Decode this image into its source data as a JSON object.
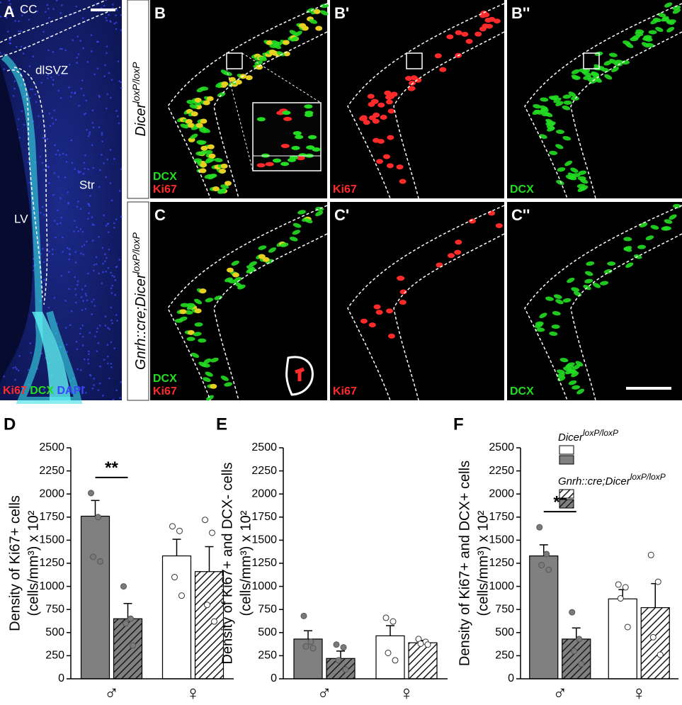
{
  "figure": {
    "panels": [
      {
        "label": "A",
        "texts": [
          "CC",
          "dlSVZ",
          "Str",
          "LV"
        ],
        "stains": [
          {
            "text": "Ki67",
            "color": "#ff2a2a"
          },
          {
            "text": "DCX",
            "color": "#22dd22"
          },
          {
            "text": "DAPI",
            "color": "#3a46ff"
          }
        ]
      },
      {
        "label": "B",
        "stains": [
          {
            "text": "DCX",
            "color": "#22dd22"
          },
          {
            "text": "Ki67",
            "color": "#ff2a2a"
          }
        ]
      },
      {
        "label": "B'",
        "stains": [
          {
            "text": "Ki67",
            "color": "#ff2a2a"
          }
        ]
      },
      {
        "label": "B''",
        "stains": [
          {
            "text": "DCX",
            "color": "#22dd22"
          }
        ]
      },
      {
        "label": "C",
        "stains": [
          {
            "text": "DCX",
            "color": "#22dd22"
          },
          {
            "text": "Ki67",
            "color": "#ff2a2a"
          }
        ]
      },
      {
        "label": "C'",
        "stains": [
          {
            "text": "Ki67",
            "color": "#ff2a2a"
          }
        ]
      },
      {
        "label": "C''",
        "stains": [
          {
            "text": "DCX",
            "color": "#22dd22"
          }
        ]
      }
    ],
    "rows": [
      {
        "text": "Dicer",
        "sup": "loxP/loxP"
      },
      {
        "text": "Gnrh::cre;Dicer",
        "sup": "loxP/loxP"
      }
    ]
  },
  "chart_data": [
    {
      "type": "bar",
      "panel": "D",
      "ylabel": [
        "Density of Ki67+ cells",
        "(cells/mm³) x 10²"
      ],
      "categories": [
        "♂",
        "♀"
      ],
      "category_colors": [
        "#808080",
        "#ffffff"
      ],
      "series": [
        {
          "values": [
            1760,
            1330
          ],
          "errors": [
            170,
            180
          ],
          "points": [
            [
              2010,
              1750,
              1320,
              1270
            ],
            [
              1650,
              1600,
              1100,
              900
            ]
          ]
        },
        {
          "hatch": true,
          "values": [
            650,
            1160
          ],
          "errors": [
            165,
            270
          ],
          "points": [
            [
              1000,
              650,
              600,
              360
            ],
            [
              1720,
              1580,
              800,
              620
            ]
          ]
        }
      ],
      "ylim": [
        0,
        2500
      ],
      "yticks": [
        0,
        250,
        500,
        750,
        1000,
        1250,
        1500,
        1750,
        2000,
        2250,
        2500
      ],
      "annotations": [
        {
          "text": "**"
        }
      ]
    },
    {
      "type": "bar",
      "panel": "E",
      "ylabel": [
        "Density of Ki67+ and DCX- cells",
        "(cells/mm³) x 10²"
      ],
      "categories": [
        "♂",
        "♀"
      ],
      "category_colors": [
        "#808080",
        "#ffffff"
      ],
      "series": [
        {
          "values": [
            430,
            465
          ],
          "errors": [
            90,
            110
          ],
          "points": [
            [
              680,
              400,
              350,
              330
            ],
            [
              660,
              620,
              280,
              200
            ]
          ]
        },
        {
          "hatch": true,
          "values": [
            220,
            390
          ],
          "errors": [
            80,
            25
          ],
          "points": [
            [
              370,
              340,
              200,
              100
            ],
            [
              430,
              400,
              380,
              370
            ]
          ]
        }
      ],
      "ylim": [
        0,
        2500
      ],
      "yticks": [
        0,
        250,
        500,
        750,
        1000,
        1250,
        1500,
        1750,
        2000,
        2250,
        2500
      ]
    },
    {
      "type": "bar",
      "panel": "F",
      "ylabel": [
        "Density of Ki67+ and DCX+ cells",
        "(cells/mm³) x 10²"
      ],
      "categories": [
        "♂",
        "♀"
      ],
      "category_colors": [
        "#808080",
        "#ffffff"
      ],
      "series": [
        {
          "name": "Dicer",
          "name_sup": "loxP/loxP",
          "values": [
            1330,
            865
          ],
          "errors": [
            120,
            100
          ],
          "points": [
            [
              1640,
              1350,
              1230,
              1180
            ],
            [
              1020,
              990,
              870,
              560
            ]
          ]
        },
        {
          "name": "Gnrh::cre;Dicer",
          "name_sup": "loxP/loxP",
          "hatch": true,
          "values": [
            430,
            770
          ],
          "errors": [
            120,
            260
          ],
          "points": [
            [
              720,
              430,
              300,
              160
            ],
            [
              1340,
              1050,
              450,
              260
            ]
          ]
        }
      ],
      "ylim": [
        0,
        2500
      ],
      "yticks": [
        0,
        250,
        500,
        750,
        1000,
        1250,
        1500,
        1750,
        2000,
        2250,
        2500
      ],
      "annotations": [
        {
          "text": "**"
        }
      ],
      "legend": true
    }
  ]
}
